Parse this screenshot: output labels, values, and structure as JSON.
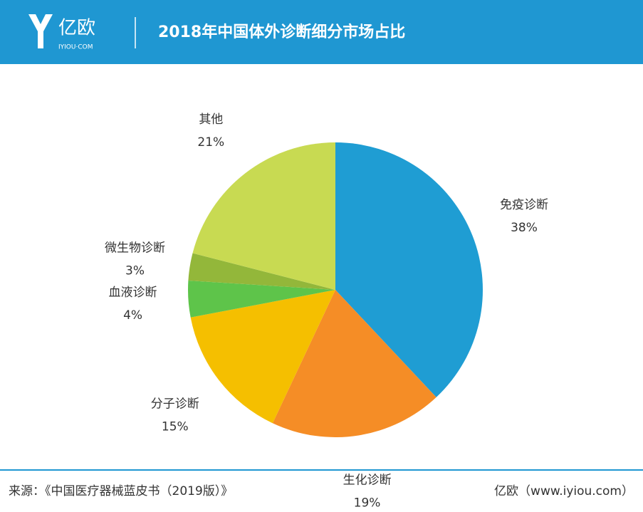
{
  "header": {
    "logo_name": "亿欧",
    "logo_domain": "IYIOU·COM"
  },
  "chart_data": {
    "type": "pie",
    "title": "2018年中国体外诊断细分市场占比",
    "categories": [
      "免疫诊断",
      "生化诊断",
      "分子诊断",
      "血液诊断",
      "微生物诊断",
      "其他"
    ],
    "values": [
      38,
      19,
      15,
      4,
      3,
      21
    ],
    "value_labels": [
      "38%",
      "19%",
      "15%",
      "4%",
      "3%",
      "21%"
    ],
    "colors": [
      "#1f9dd3",
      "#f58d26",
      "#f5bf00",
      "#5ec44a",
      "#93b73a",
      "#c8da52"
    ]
  },
  "footer": {
    "source": "来源：《中国医疗器械蓝皮书（2019版）》",
    "credit": "亿欧（www.iyiou.com）"
  }
}
